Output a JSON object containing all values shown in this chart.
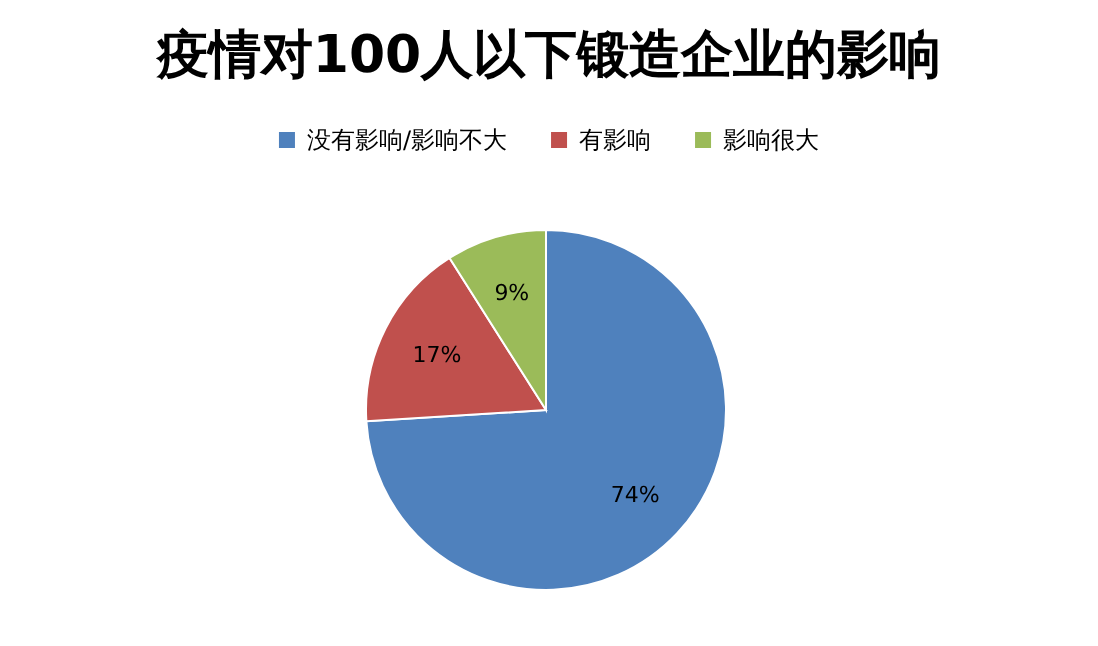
{
  "chart_data": {
    "type": "pie",
    "title": "疫情对100人以下锻造企业的影响",
    "categories": [
      "没有影响/影响不大",
      "有影响",
      "影响很大"
    ],
    "values": [
      74,
      17,
      9
    ],
    "colors": [
      "#4f81bd",
      "#c0504d",
      "#9bbb59"
    ],
    "value_labels": [
      "74%",
      "17%",
      "9%"
    ],
    "legend": "top"
  }
}
